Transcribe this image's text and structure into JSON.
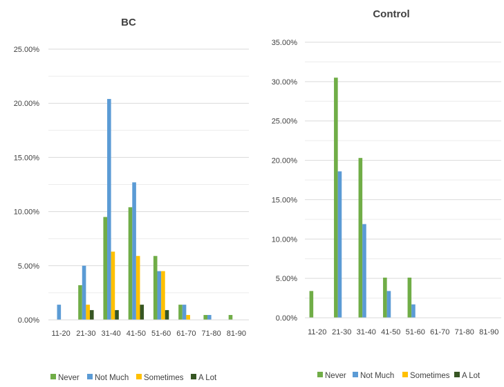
{
  "chart_data": [
    {
      "type": "bar",
      "title": "BC",
      "xlabel": "",
      "ylabel": "",
      "categories": [
        "11-20",
        "21-30",
        "31-40",
        "41-50",
        "51-60",
        "61-70",
        "71-80",
        "81-90"
      ],
      "y_ticks": [
        "0.00%",
        "5.00%",
        "10.00%",
        "15.00%",
        "20.00%",
        "25.00%"
      ],
      "ylim": [
        0,
        25
      ],
      "y_unit": "%",
      "grid": true,
      "legend_position": "bottom",
      "series": [
        {
          "name": "Never",
          "color": "#70ad47",
          "values": [
            0,
            3.2,
            9.5,
            10.4,
            5.9,
            1.4,
            0.45,
            0.45
          ]
        },
        {
          "name": "Not Much",
          "color": "#5b9bd5",
          "values": [
            1.4,
            5.0,
            20.4,
            12.7,
            4.5,
            1.4,
            0.45,
            0
          ]
        },
        {
          "name": "Sometimes",
          "color": "#ffc000",
          "values": [
            0,
            1.4,
            6.3,
            5.9,
            4.5,
            0.45,
            0,
            0
          ]
        },
        {
          "name": "A Lot",
          "color": "#375623",
          "values": [
            0,
            0.9,
            0.9,
            1.4,
            0.9,
            0,
            0,
            0
          ]
        }
      ]
    },
    {
      "type": "bar",
      "title": "Control",
      "xlabel": "",
      "ylabel": "",
      "categories": [
        "11-20",
        "21-30",
        "31-40",
        "41-50",
        "51-60",
        "61-70",
        "71-80",
        "81-90"
      ],
      "y_ticks": [
        "0.00%",
        "5.00%",
        "10.00%",
        "15.00%",
        "20.00%",
        "25.00%",
        "30.00%",
        "35.00%"
      ],
      "ylim": [
        0,
        35
      ],
      "y_unit": "%",
      "grid": true,
      "legend_position": "bottom",
      "series": [
        {
          "name": "Never",
          "color": "#70ad47",
          "values": [
            3.4,
            30.5,
            20.3,
            5.1,
            5.1,
            0,
            0,
            0
          ]
        },
        {
          "name": "Not Much",
          "color": "#5b9bd5",
          "values": [
            0,
            18.6,
            11.9,
            3.4,
            1.7,
            0,
            0,
            0
          ]
        },
        {
          "name": "Sometimes",
          "color": "#ffc000",
          "values": [
            0,
            0,
            0,
            0,
            0,
            0,
            0,
            0
          ]
        },
        {
          "name": "A Lot",
          "color": "#375623",
          "values": [
            0,
            0,
            0,
            0,
            0,
            0,
            0,
            0
          ]
        }
      ]
    }
  ]
}
